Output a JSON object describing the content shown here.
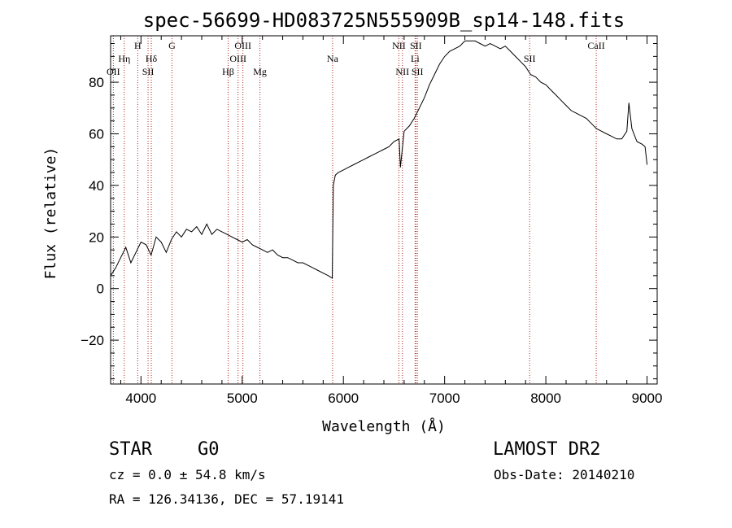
{
  "chart_data": {
    "type": "line",
    "title": "spec-56699-HD083725N555909B_sp14-148.fits",
    "xlabel": "Wavelength (Å)",
    "ylabel": "Flux (relative)",
    "xlim": [
      3700,
      9100
    ],
    "ylim": [
      -37,
      98
    ],
    "x_ticks": [
      4000,
      5000,
      6000,
      7000,
      8000,
      9000
    ],
    "y_ticks": [
      -20,
      0,
      20,
      40,
      60,
      80
    ],
    "grid": false,
    "series": [
      {
        "x": [
          3700,
          3750,
          3800,
          3850,
          3900,
          3950,
          4000,
          4050,
          4100,
          4150,
          4200,
          4250,
          4300,
          4350,
          4400,
          4450,
          4500,
          4550,
          4600,
          4650,
          4700,
          4750,
          4800,
          4850,
          4900,
          4950,
          5000,
          5050,
          5100,
          5150,
          5200,
          5250,
          5300,
          5350,
          5400,
          5450,
          5500,
          5550,
          5600,
          5650,
          5700,
          5750,
          5800,
          5850,
          5890,
          5900,
          5920,
          5950,
          6000,
          6050,
          6100,
          6150,
          6200,
          6250,
          6300,
          6350,
          6400,
          6450,
          6500,
          6550,
          6563,
          6600,
          6650,
          6700,
          6750,
          6800,
          6850,
          6900,
          6950,
          7000,
          7050,
          7100,
          7150,
          7200,
          7250,
          7300,
          7350,
          7400,
          7450,
          7500,
          7550,
          7600,
          7650,
          7700,
          7750,
          7800,
          7850,
          7900,
          7950,
          8000,
          8050,
          8100,
          8150,
          8200,
          8250,
          8300,
          8350,
          8400,
          8450,
          8500,
          8550,
          8600,
          8650,
          8700,
          8750,
          8800,
          8820,
          8850,
          8900,
          8950,
          8980,
          9000
        ],
        "y": [
          5,
          8,
          12,
          16,
          10,
          14,
          18,
          17,
          13,
          20,
          18,
          14,
          19,
          22,
          20,
          23,
          22,
          24,
          21,
          25,
          21,
          23,
          22,
          21,
          20,
          19,
          18,
          19,
          17,
          16,
          15,
          14,
          15,
          13,
          12,
          12,
          11,
          10,
          10,
          9,
          8,
          7,
          6,
          5,
          4,
          40,
          44,
          45,
          46,
          47,
          48,
          49,
          50,
          51,
          52,
          53,
          54,
          55,
          57,
          58,
          47,
          61,
          63,
          66,
          70,
          74,
          79,
          83,
          87,
          90,
          92,
          93,
          94,
          96,
          96,
          96,
          95,
          94,
          95,
          94,
          93,
          94,
          92,
          90,
          88,
          86,
          83,
          82,
          80,
          79,
          77,
          75,
          73,
          71,
          69,
          68,
          67,
          66,
          64,
          62,
          61,
          60,
          59,
          58,
          58,
          61,
          72,
          62,
          57,
          56,
          55,
          48
        ]
      }
    ],
    "line_markers": [
      {
        "label": "OII",
        "x": 3727
      },
      {
        "label": "Hη",
        "x": 3835
      },
      {
        "label": "H",
        "x": 3968
      },
      {
        "label": "SII",
        "x": 4070
      },
      {
        "label": "Hδ",
        "x": 4102
      },
      {
        "label": "G",
        "x": 4306
      },
      {
        "label": "Hβ",
        "x": 4861
      },
      {
        "label": "OIII",
        "x": 4959
      },
      {
        "label": "OIII",
        "x": 5007
      },
      {
        "label": "Mg",
        "x": 5175
      },
      {
        "label": "Na",
        "x": 5893
      },
      {
        "label": "NII",
        "x": 6548
      },
      {
        "label": "NII",
        "x": 6583
      },
      {
        "label": "Li",
        "x": 6708
      },
      {
        "label": "SII",
        "x": 6716
      },
      {
        "label": "SII",
        "x": 6731
      },
      {
        "label": "SII",
        "x": 7840
      },
      {
        "label": "CaII",
        "x": 8498
      }
    ]
  },
  "info": {
    "object_class": "STAR",
    "subclass": "G0",
    "survey": "LAMOST DR2",
    "redshift": "cz = 0.0 ± 54.8 km/s",
    "obs_date": "Obs-Date: 20140210",
    "coords": "RA = 126.34136, DEC =  57.19141"
  },
  "colors": {
    "spectrum": "#000000",
    "marker_line": "#b22222",
    "axes": "#000000"
  }
}
